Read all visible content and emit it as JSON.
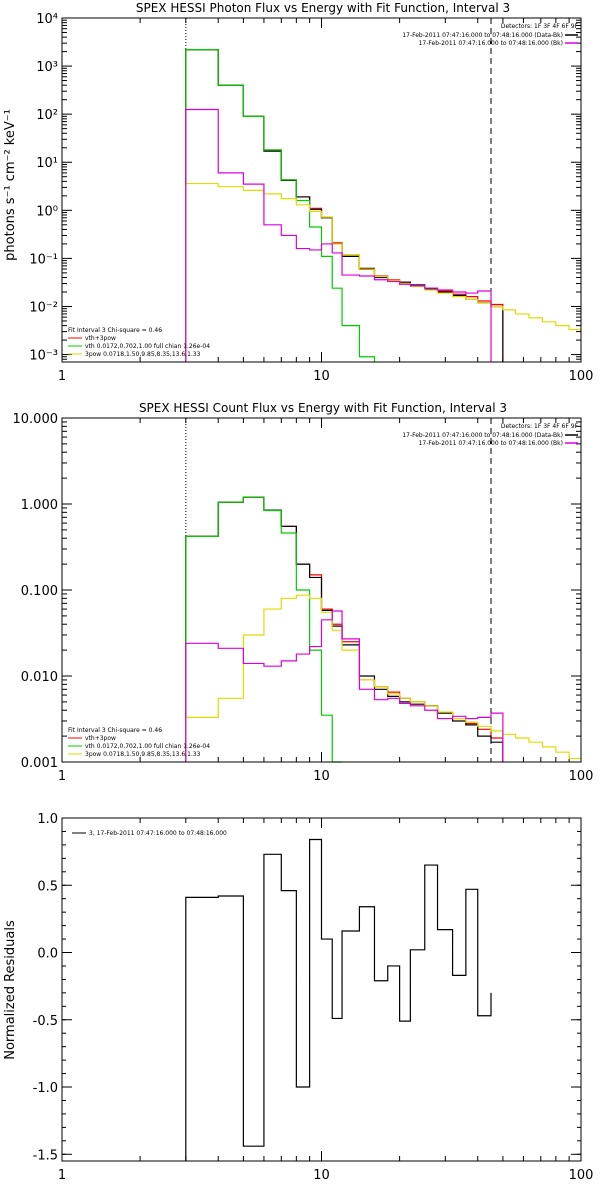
{
  "chart_data": [
    {
      "type": "line",
      "title": "SPEX HESSI Photon Flux vs Energy with Fit Function, Interval 3",
      "ylabel": "photons s⁻¹ cm⁻² keV⁻¹",
      "xlabel": "",
      "xscale": "log",
      "yscale": "log",
      "xlim": [
        1,
        100
      ],
      "ylim": [
        0.0007,
        10000
      ],
      "xticks": [
        {
          "v": 1,
          "label": "1"
        },
        {
          "v": 10,
          "label": "10"
        },
        {
          "v": 100,
          "label": "100"
        }
      ],
      "yticks": [
        {
          "v": 0.001,
          "label": "10⁻³"
        },
        {
          "v": 0.01,
          "label": "10⁻²"
        },
        {
          "v": 0.1,
          "label": "10⁻¹"
        },
        {
          "v": 1,
          "label": "10⁰"
        },
        {
          "v": 10,
          "label": "10¹"
        },
        {
          "v": 100,
          "label": "10²"
        },
        {
          "v": 1000,
          "label": "10³"
        },
        {
          "v": 10000,
          "label": "10⁴"
        }
      ],
      "legend_tr": {
        "line1": "Detectors: 1F 3F 4F 6F 9F",
        "line2": "17-Feb-2011 07:47:16.000 to 07:48:16.000 (Data-Bk)",
        "line3": "17-Feb-2011 07:47:16.000 to 07:48:16.000 (Bk)"
      },
      "legend_bl": {
        "line1": "Fit Interval 3   Chi-square = 0.46",
        "line2": "vth+3pow",
        "line3": "vth 0.0172,0.702,1.00  full chian 1.26e-04",
        "line4": "3pow 0.0718,1.50,9.85,8.35,13.6,1.33"
      },
      "vlines": [
        {
          "x": 3,
          "style": "dotted"
        },
        {
          "x": 45,
          "style": "dashed"
        }
      ],
      "edges": [
        3,
        4,
        5,
        6,
        7,
        8,
        9,
        10,
        11,
        12,
        14,
        16,
        18,
        20,
        22,
        25,
        28,
        32,
        36,
        40,
        45,
        50,
        56,
        63,
        71,
        80,
        90,
        100
      ],
      "series": [
        {
          "color": "#ff0000",
          "values": [
            2200,
            400,
            90,
            18,
            4.3,
            1.9,
            1.1,
            0.72,
            0.21,
            0.12,
            0.059,
            0.043,
            0.036,
            0.032,
            0.028,
            0.024,
            0.021,
            0.018,
            0.016,
            0.013,
            0.011
          ]
        },
        {
          "color": "#000000",
          "values": [
            2200,
            400,
            90,
            17,
            4.2,
            1.9,
            1.05,
            0.7,
            0.2,
            0.11,
            0.062,
            0.04,
            0.034,
            0.032,
            0.028,
            0.023,
            0.02,
            0.017,
            0.014,
            0.012,
            0.01
          ]
        },
        {
          "color": "#00cc00",
          "values": [
            2200,
            400,
            90,
            18,
            4.3,
            1.6,
            0.45,
            0.11,
            0.024,
            0.004,
            0.0009
          ]
        },
        {
          "color": "#dddd00",
          "values": [
            3.6,
            3.1,
            2.6,
            2.2,
            1.75,
            1.3,
            0.95,
            0.72,
            0.2,
            0.12,
            0.06,
            0.042,
            0.035,
            0.03,
            0.026,
            0.022,
            0.019,
            0.016,
            0.014,
            0.012,
            0.01,
            0.0085,
            0.007,
            0.0058,
            0.0048,
            0.004,
            0.0033
          ]
        },
        {
          "color": "#dd00dd",
          "values": [
            125,
            6,
            3.5,
            0.5,
            0.3,
            0.16,
            0.15,
            0.2,
            0.13,
            0.045,
            0.043,
            0.036,
            0.033,
            0.029,
            0.027,
            0.024,
            0.022,
            0.02,
            0.019,
            0.021
          ]
        }
      ]
    },
    {
      "type": "line",
      "title": "SPEX HESSI Count Flux vs Energy with Fit Function, Interval 3",
      "ylabel": "",
      "xlabel": "",
      "xscale": "log",
      "yscale": "log",
      "xlim": [
        1,
        100
      ],
      "ylim": [
        0.001,
        10
      ],
      "xticks": [
        {
          "v": 1,
          "label": "1"
        },
        {
          "v": 10,
          "label": "10"
        },
        {
          "v": 100,
          "label": "100"
        }
      ],
      "yticks": [
        {
          "v": 0.001,
          "label": "0.001"
        },
        {
          "v": 0.01,
          "label": "0.010"
        },
        {
          "v": 0.1,
          "label": "0.100"
        },
        {
          "v": 1,
          "label": "1.000"
        },
        {
          "v": 10,
          "label": "10.000"
        }
      ],
      "legend_tr": {
        "line1": "Detectors: 1F 3F 4F 6F 9F",
        "line2": "17-Feb-2011 07:47:16.000 to 07:48:16.000 (Data-Bk)",
        "line3": "17-Feb-2011 07:47:16.000 to 07:48:16.000 (Bk)"
      },
      "legend_bl": {
        "line1": "Fit Interval 3   Chi-square = 0.46",
        "line2": "vth+3pow",
        "line3": "vth 0.0172,0.702,1.00  full chian 1.26e-04",
        "line4": "3pow 0.0718,1.50,9.85,8.35,13.6,1.33"
      },
      "vlines": [
        {
          "x": 3,
          "style": "dotted"
        },
        {
          "x": 45,
          "style": "dashed"
        }
      ],
      "edges": [
        3,
        4,
        5,
        6,
        7,
        8,
        9,
        10,
        11,
        12,
        14,
        16,
        18,
        20,
        22,
        25,
        28,
        32,
        36,
        40,
        45,
        50,
        56,
        63,
        71,
        80,
        90,
        100
      ],
      "series": [
        {
          "color": "#ff0000",
          "values": [
            0.42,
            1.05,
            1.2,
            0.85,
            0.55,
            0.2,
            0.15,
            0.06,
            0.04,
            0.025,
            0.009,
            0.0075,
            0.0065,
            0.0055,
            0.005,
            0.0045,
            0.0038,
            0.0032,
            0.0028,
            0.0024,
            0.0019
          ]
        },
        {
          "color": "#000000",
          "values": [
            0.42,
            1.05,
            1.2,
            0.85,
            0.55,
            0.2,
            0.14,
            0.058,
            0.038,
            0.023,
            0.01,
            0.007,
            0.0058,
            0.005,
            0.0047,
            0.0045,
            0.0037,
            0.003,
            0.0027,
            0.002,
            0.0017
          ]
        },
        {
          "color": "#00cc00",
          "values": [
            0.42,
            1.05,
            1.2,
            0.84,
            0.46,
            0.1,
            0.02,
            0.0035,
            0.0005
          ]
        },
        {
          "color": "#dddd00",
          "values": [
            0.0033,
            0.0055,
            0.03,
            0.06,
            0.08,
            0.087,
            0.08,
            0.055,
            0.034,
            0.02,
            0.009,
            0.0075,
            0.0062,
            0.0055,
            0.005,
            0.0045,
            0.0038,
            0.0032,
            0.0029,
            0.0026,
            0.0023,
            0.0021,
            0.0019,
            0.0017,
            0.0015,
            0.0013,
            0.0011
          ]
        },
        {
          "color": "#dd00dd",
          "values": [
            0.024,
            0.021,
            0.014,
            0.013,
            0.015,
            0.018,
            0.022,
            0.045,
            0.057,
            0.027,
            0.007,
            0.0053,
            0.0055,
            0.0048,
            0.0045,
            0.004,
            0.0032,
            0.0034,
            0.0032,
            0.0033,
            0.0037
          ]
        }
      ]
    },
    {
      "type": "line",
      "title": "",
      "ylabel": "Normalized Residuals",
      "xlabel": "",
      "xscale": "log",
      "yscale": "linear",
      "xlim": [
        1,
        100
      ],
      "ylim": [
        -1.55,
        1.0
      ],
      "xticks": [
        {
          "v": 1,
          "label": "1"
        },
        {
          "v": 10,
          "label": "10"
        },
        {
          "v": 100,
          "label": "100"
        }
      ],
      "yticks": [
        {
          "v": 1.0,
          "label": "1.0"
        },
        {
          "v": 0.5,
          "label": "0.5"
        },
        {
          "v": 0.0,
          "label": "0.0"
        },
        {
          "v": -0.5,
          "label": "-0.5"
        },
        {
          "v": -1.0,
          "label": "-1.0"
        },
        {
          "v": -1.5,
          "label": "-1.5"
        }
      ],
      "legend_tl": {
        "line1": "3, 17-Feb-2011 07:47:16.000 to 07:48:16.000"
      },
      "edges": [
        3,
        4,
        5,
        6,
        7,
        8,
        9,
        10,
        11,
        12,
        14,
        16,
        18,
        20,
        22,
        25,
        28,
        32,
        36,
        40,
        45
      ],
      "series": [
        {
          "color": "#000000",
          "values": [
            0.41,
            0.42,
            -1.44,
            0.73,
            0.46,
            -1.0,
            0.84,
            0.1,
            -0.49,
            0.16,
            0.34,
            -0.21,
            -0.1,
            -0.51,
            0.02,
            0.65,
            0.17,
            -0.17,
            0.47,
            -0.47,
            -0.3
          ]
        }
      ]
    }
  ]
}
